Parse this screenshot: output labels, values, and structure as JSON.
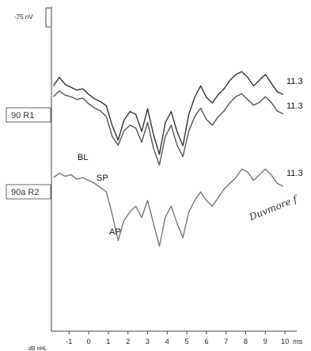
{
  "chart_data": {
    "type": "line",
    "x_unit": "ms",
    "y_unit": "dB nHL",
    "scale_label": "-75 nV",
    "xlim": [
      -1.9,
      10.4
    ],
    "x_ticks": [
      -1,
      0,
      1,
      2,
      3,
      4,
      5,
      6,
      7,
      8,
      9,
      10
    ],
    "series": [
      {
        "name": "90 R1",
        "color": "#333333",
        "end_label": "11.3",
        "x": [
          -1.8,
          -1.5,
          -1.2,
          -0.9,
          -0.6,
          -0.3,
          0.0,
          0.3,
          0.6,
          0.9,
          1.2,
          1.5,
          1.8,
          2.1,
          2.4,
          2.7,
          3.0,
          3.3,
          3.6,
          3.9,
          4.2,
          4.5,
          4.8,
          5.1,
          5.4,
          5.7,
          6.0,
          6.3,
          6.6,
          6.9,
          7.2,
          7.5,
          7.8,
          8.1,
          8.4,
          8.7,
          9.0,
          9.3,
          9.6,
          9.9
        ],
        "y": [
          0.6,
          0.9,
          0.65,
          0.55,
          0.45,
          0.5,
          0.3,
          0.15,
          0.05,
          -0.1,
          -0.8,
          -1.3,
          -0.6,
          -0.3,
          -0.4,
          -1.0,
          -0.2,
          -1.1,
          -1.8,
          -0.7,
          -0.3,
          -1.0,
          -1.5,
          -0.4,
          0.2,
          0.6,
          0.2,
          0.0,
          0.3,
          0.5,
          0.8,
          1.0,
          1.1,
          0.9,
          0.6,
          0.8,
          1.0,
          0.7,
          0.4,
          0.3
        ]
      },
      {
        "name": "90 R1",
        "color": "#555555",
        "end_label": "11.3",
        "x": [
          -1.8,
          -1.5,
          -1.2,
          -0.9,
          -0.6,
          -0.3,
          0.0,
          0.3,
          0.6,
          0.9,
          1.2,
          1.5,
          1.8,
          2.1,
          2.4,
          2.7,
          3.0,
          3.3,
          3.6,
          3.9,
          4.2,
          4.5,
          4.8,
          5.1,
          5.4,
          5.7,
          6.0,
          6.3,
          6.6,
          6.9,
          7.2,
          7.5,
          7.8,
          8.1,
          8.4,
          8.7,
          9.0,
          9.3,
          9.6,
          9.9
        ],
        "y": [
          0.5,
          0.7,
          0.55,
          0.5,
          0.4,
          0.45,
          0.25,
          0.1,
          0.0,
          -0.2,
          -0.9,
          -1.2,
          -0.7,
          -0.5,
          -0.6,
          -1.1,
          -0.4,
          -1.3,
          -1.9,
          -0.9,
          -0.5,
          -1.2,
          -1.6,
          -0.7,
          -0.2,
          0.1,
          -0.3,
          -0.5,
          -0.2,
          0.0,
          0.3,
          0.5,
          0.6,
          0.4,
          0.2,
          0.3,
          0.5,
          0.3,
          0.0,
          -0.1
        ]
      },
      {
        "name": "90a R2",
        "color": "#777777",
        "end_label": "11.3",
        "x": [
          -1.8,
          -1.5,
          -1.2,
          -0.9,
          -0.6,
          -0.3,
          0.0,
          0.3,
          0.6,
          0.9,
          1.2,
          1.5,
          1.8,
          2.1,
          2.4,
          2.7,
          3.0,
          3.3,
          3.6,
          3.9,
          4.2,
          4.5,
          4.8,
          5.1,
          5.4,
          5.7,
          6.0,
          6.3,
          6.6,
          6.9,
          7.2,
          7.5,
          7.8,
          8.1,
          8.4,
          8.7,
          9.0,
          9.3,
          9.6,
          9.9
        ],
        "y": [
          -2.2,
          -2.05,
          -2.15,
          -2.1,
          -2.25,
          -2.2,
          -2.3,
          -2.4,
          -2.55,
          -2.7,
          -3.5,
          -4.4,
          -3.7,
          -3.4,
          -3.2,
          -3.6,
          -3.0,
          -3.8,
          -4.6,
          -3.6,
          -3.2,
          -3.8,
          -4.3,
          -3.4,
          -3.0,
          -2.7,
          -3.0,
          -3.2,
          -2.9,
          -2.6,
          -2.4,
          -2.2,
          -1.9,
          -2.0,
          -2.3,
          -2.1,
          -1.9,
          -2.1,
          -2.4,
          -2.5
        ]
      }
    ],
    "boxes": [
      "90 R1",
      "90a R2"
    ],
    "annotations": [
      "BL",
      "SP",
      "AP"
    ],
    "signature_text": "Duvmore f"
  }
}
